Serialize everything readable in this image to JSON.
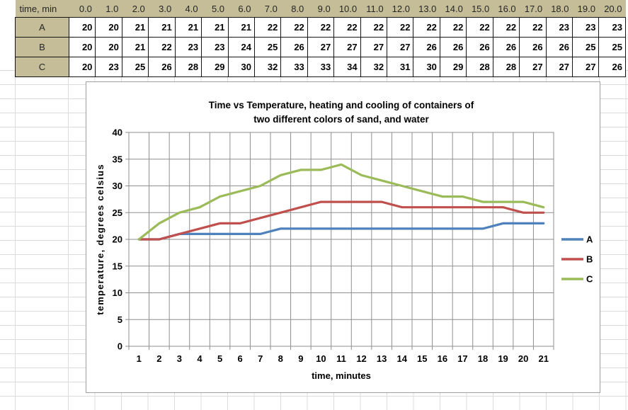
{
  "table": {
    "header_label": "time, min",
    "time_values": [
      "0.0",
      "1.0",
      "2.0",
      "3.0",
      "4.0",
      "5.0",
      "6.0",
      "7.0",
      "8.0",
      "9.0",
      "10.0",
      "11.0",
      "12.0",
      "13.0",
      "14.0",
      "15.0",
      "16.0",
      "17.0",
      "18.0",
      "19.0",
      "20.0"
    ],
    "rows": [
      {
        "label": "A",
        "values": [
          20,
          20,
          21,
          21,
          21,
          21,
          21,
          22,
          22,
          22,
          22,
          22,
          22,
          22,
          22,
          22,
          22,
          22,
          23,
          23,
          23
        ]
      },
      {
        "label": "B",
        "values": [
          20,
          20,
          21,
          22,
          23,
          23,
          24,
          25,
          26,
          27,
          27,
          27,
          27,
          26,
          26,
          26,
          26,
          26,
          26,
          25,
          25
        ]
      },
      {
        "label": "C",
        "values": [
          20,
          23,
          25,
          26,
          28,
          29,
          30,
          32,
          33,
          33,
          34,
          32,
          31,
          30,
          29,
          28,
          28,
          27,
          27,
          27,
          26
        ]
      }
    ]
  },
  "chart_data": {
    "type": "line",
    "title_lines": [
      "Time vs Temperature, heating and cooling of containers of",
      "two different colors of sand, and water"
    ],
    "xlabel": "time, minutes",
    "ylabel": "temperature, degrees celsius",
    "x_tick_labels": [
      "1",
      "2",
      "3",
      "4",
      "5",
      "6",
      "7",
      "8",
      "9",
      "10",
      "11",
      "12",
      "13",
      "14",
      "15",
      "16",
      "17",
      "18",
      "19",
      "20",
      "21"
    ],
    "ylim": [
      0,
      40
    ],
    "y_step": 5,
    "grid": "both",
    "legend_position": "right",
    "series": [
      {
        "name": "A",
        "color": "#4F81BD",
        "values": [
          20,
          20,
          21,
          21,
          21,
          21,
          21,
          22,
          22,
          22,
          22,
          22,
          22,
          22,
          22,
          22,
          22,
          22,
          23,
          23,
          23
        ]
      },
      {
        "name": "B",
        "color": "#C0504D",
        "values": [
          20,
          20,
          21,
          22,
          23,
          23,
          24,
          25,
          26,
          27,
          27,
          27,
          27,
          26,
          26,
          26,
          26,
          26,
          26,
          25,
          25
        ]
      },
      {
        "name": "C",
        "color": "#9BBB59",
        "values": [
          20,
          23,
          25,
          26,
          28,
          29,
          30,
          32,
          33,
          33,
          34,
          32,
          31,
          30,
          29,
          28,
          28,
          27,
          27,
          27,
          26
        ]
      }
    ]
  },
  "colors": {
    "table_header_bg": "#C4BD97",
    "background_grid_line": "#DCDCDC",
    "chart_border": "#9F9F9F",
    "axis_and_grid": "#8F8F8F",
    "series_a": "#4F81BD",
    "series_b": "#C0504D",
    "series_c": "#9BBB59"
  }
}
